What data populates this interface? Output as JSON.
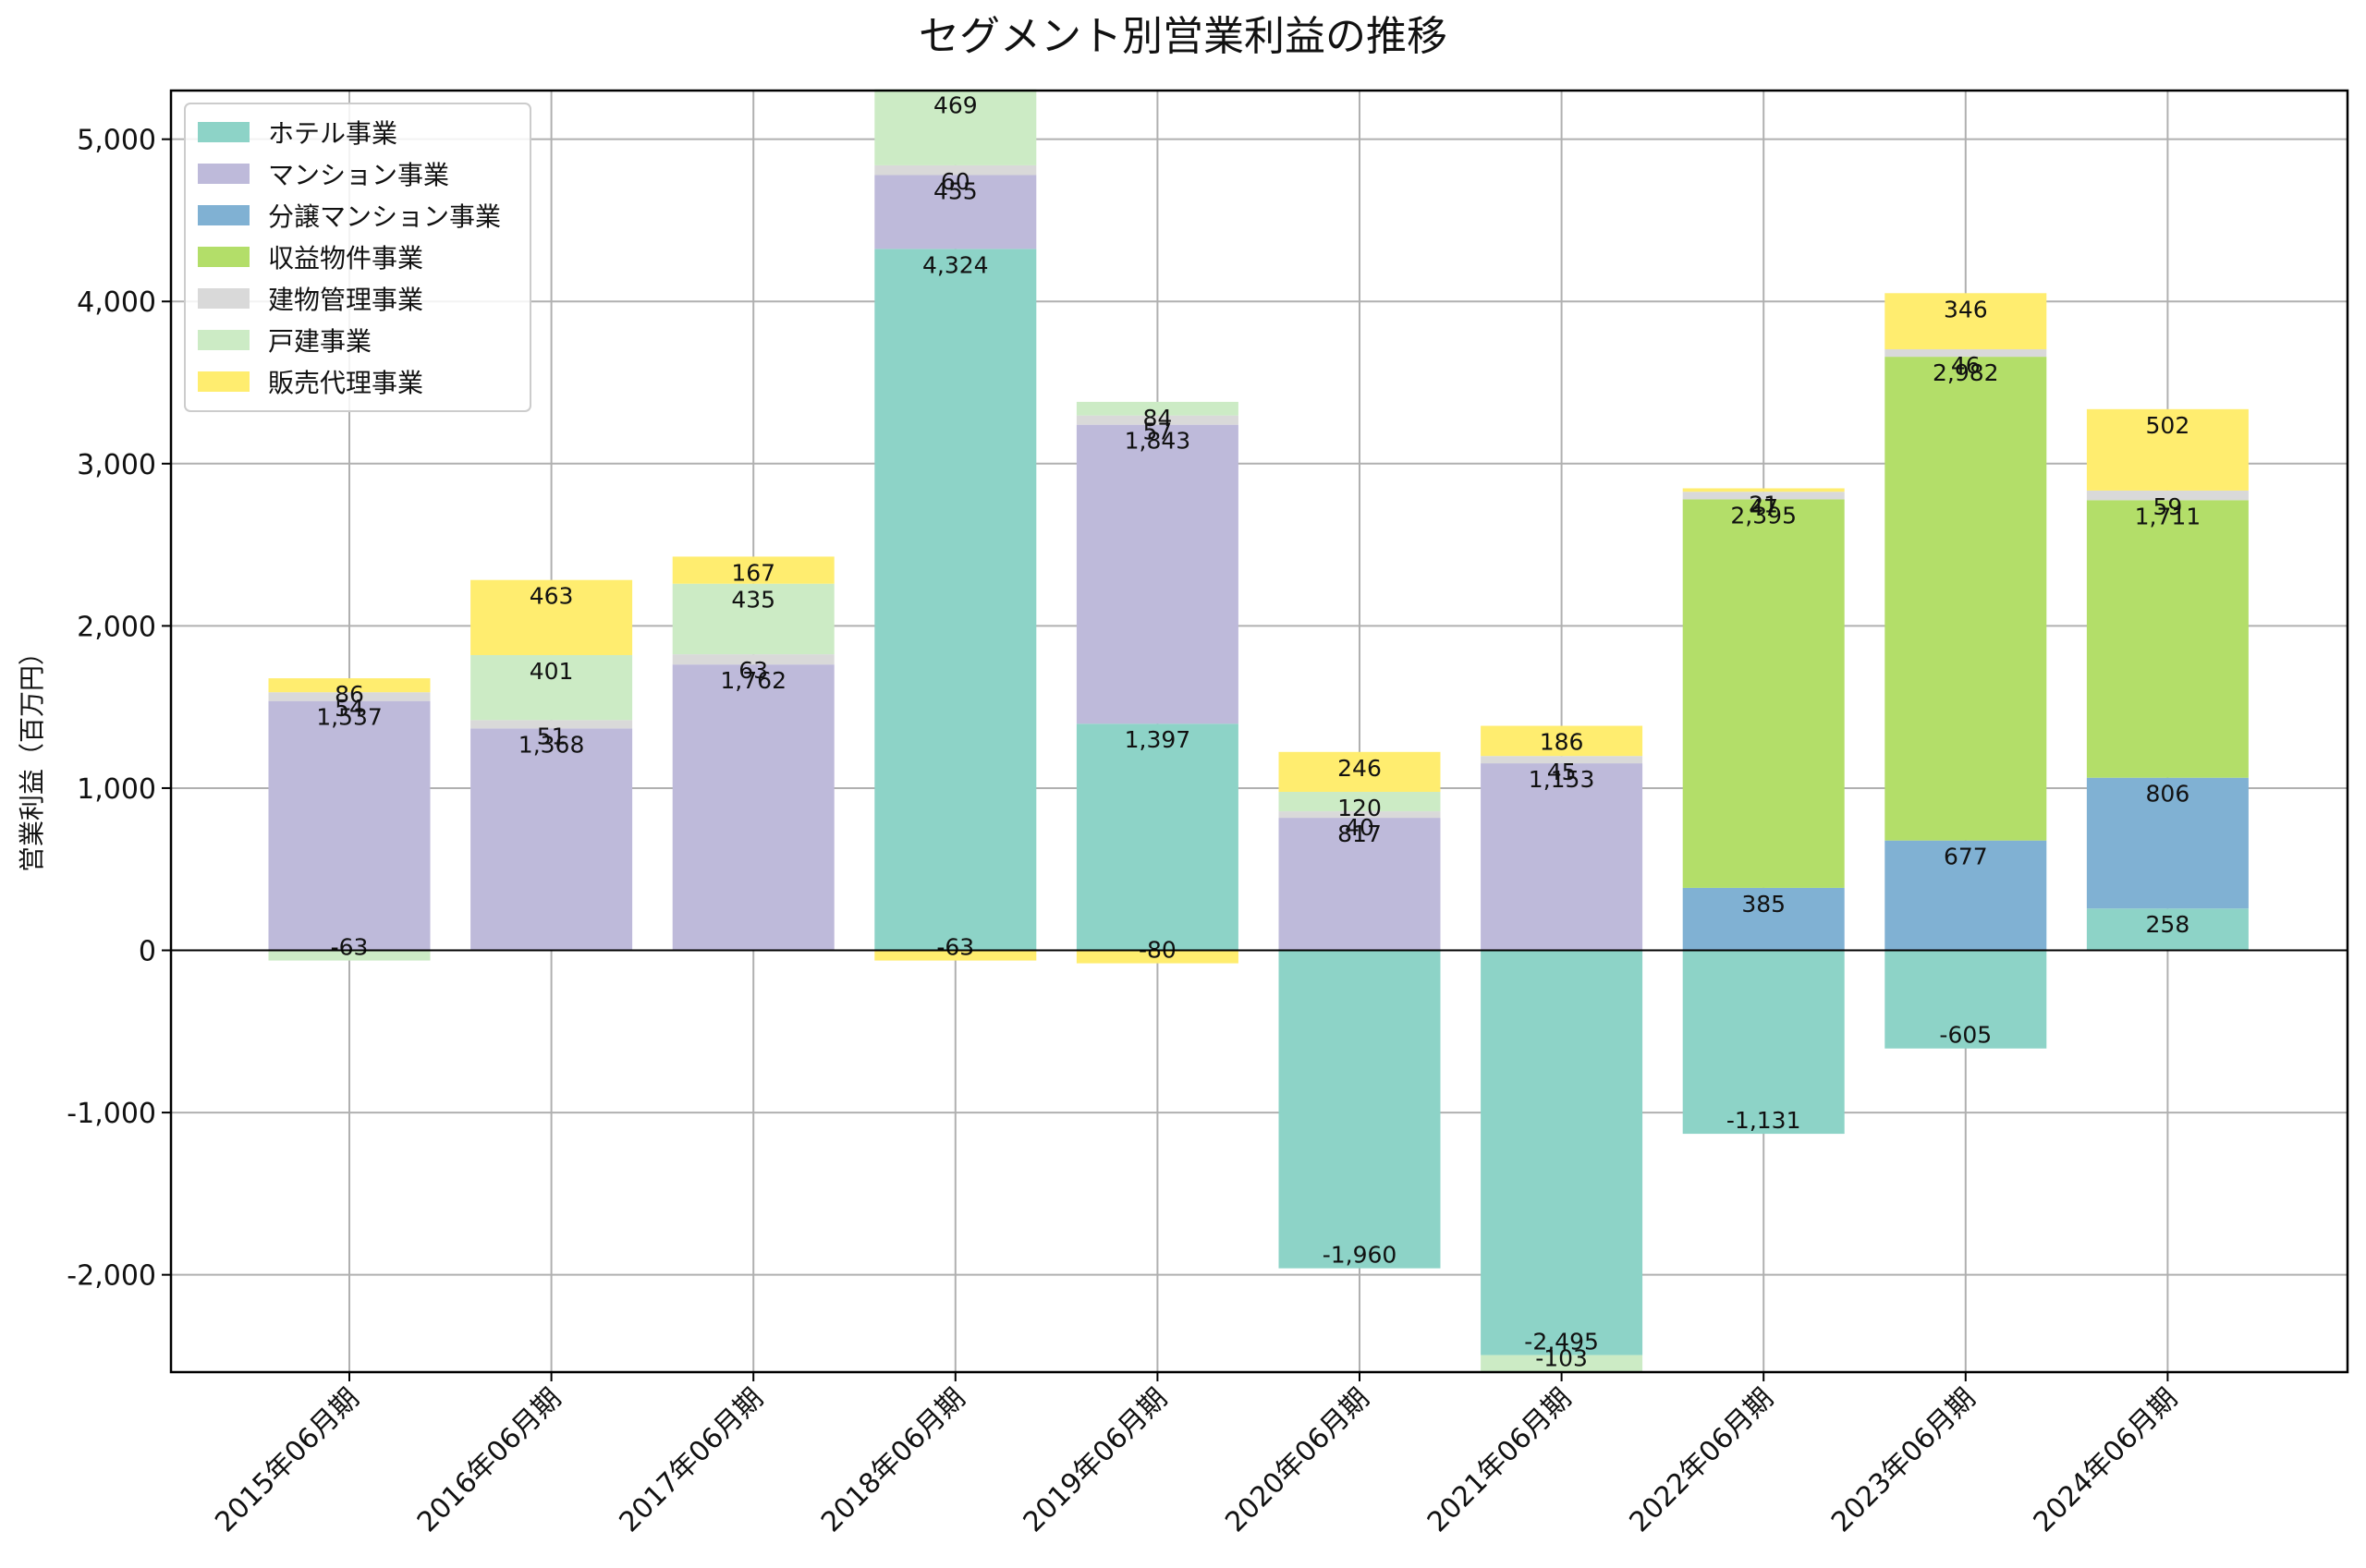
{
  "chart_data": {
    "type": "bar",
    "stacked": true,
    "title": "セグメント別営業利益の推移",
    "xlabel": "",
    "ylabel": "営業利益（百万円）",
    "ylim": [
      -2600,
      5300
    ],
    "yticks": [
      -2000,
      -1000,
      0,
      1000,
      2000,
      3000,
      4000,
      5000
    ],
    "ytick_labels": [
      "-2,000",
      "-1,000",
      "0",
      "1,000",
      "2,000",
      "3,000",
      "4,000",
      "5,000"
    ],
    "grid": true,
    "legend_position": "top-left",
    "categories": [
      "2015年06月期",
      "2016年06月期",
      "2017年06月期",
      "2018年06月期",
      "2019年06月期",
      "2020年06月期",
      "2021年06月期",
      "2022年06月期",
      "2023年06月期",
      "2024年06月期"
    ],
    "series": [
      {
        "name": "ホテル事業",
        "color": "#8dd3c7",
        "values": [
          null,
          null,
          null,
          4324,
          1397,
          -1960,
          -2495,
          -1131,
          -605,
          258
        ]
      },
      {
        "name": "マンション事業",
        "color": "#bebada",
        "values": [
          1537,
          1368,
          1762,
          455,
          1843,
          817,
          1153,
          null,
          null,
          null
        ]
      },
      {
        "name": "分譲マンション事業",
        "color": "#80b1d3",
        "values": [
          null,
          null,
          null,
          null,
          null,
          null,
          null,
          385,
          677,
          806
        ]
      },
      {
        "name": "収益物件事業",
        "color": "#b3de69",
        "values": [
          null,
          null,
          null,
          null,
          null,
          null,
          null,
          2395,
          2982,
          1711
        ]
      },
      {
        "name": "建物管理事業",
        "color": "#d9d9d9",
        "values": [
          54,
          51,
          63,
          60,
          57,
          40,
          45,
          47,
          46,
          59
        ]
      },
      {
        "name": "戸建事業",
        "color": "#ccebc5",
        "values": [
          -63,
          401,
          435,
          469,
          84,
          120,
          -103,
          null,
          null,
          null
        ]
      },
      {
        "name": "販売代理事業",
        "color": "#ffed6f",
        "values": [
          86,
          463,
          167,
          -63,
          -80,
          246,
          186,
          21,
          346,
          502
        ]
      }
    ]
  }
}
